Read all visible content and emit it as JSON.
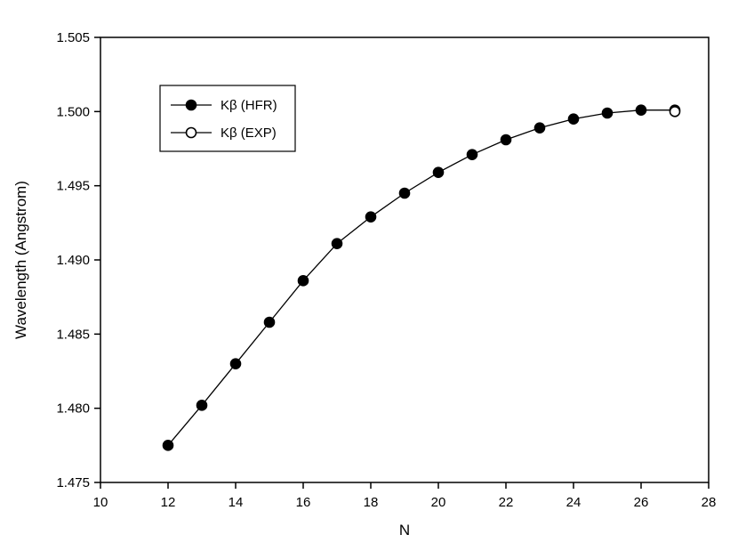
{
  "chart_data": {
    "type": "line",
    "title": "",
    "xlabel": "N",
    "ylabel": "Wavelength (Angstrom)",
    "xlim": [
      10,
      28
    ],
    "ylim": [
      1.475,
      1.505
    ],
    "xticks": [
      10,
      12,
      14,
      16,
      18,
      20,
      22,
      24,
      26,
      28
    ],
    "xticklabels": [
      "10",
      "12",
      "14",
      "16",
      "18",
      "20",
      "22",
      "24",
      "26",
      "28"
    ],
    "yticks": [
      1.475,
      1.48,
      1.485,
      1.49,
      1.495,
      1.5,
      1.505
    ],
    "yticklabels": [
      "1.475",
      "1.480",
      "1.485",
      "1.490",
      "1.495",
      "1.500",
      "1.505"
    ],
    "grid": false,
    "legend_position": "upper-left",
    "line_color": "#000000",
    "series": [
      {
        "name": "Kβ (HFR)",
        "marker": "circle-filled",
        "color": "#000000",
        "x": [
          12,
          13,
          14,
          15,
          16,
          17,
          18,
          19,
          20,
          21,
          22,
          23,
          24,
          25,
          26,
          27
        ],
        "y": [
          1.4775,
          1.4802,
          1.483,
          1.4858,
          1.4886,
          1.4911,
          1.4929,
          1.4945,
          1.4959,
          1.4971,
          1.4981,
          1.4989,
          1.4995,
          1.4999,
          1.5001,
          1.5001
        ]
      },
      {
        "name": "Kβ (EXP)",
        "marker": "circle-open",
        "color": "#000000",
        "x": [
          27
        ],
        "y": [
          1.5
        ]
      }
    ]
  }
}
